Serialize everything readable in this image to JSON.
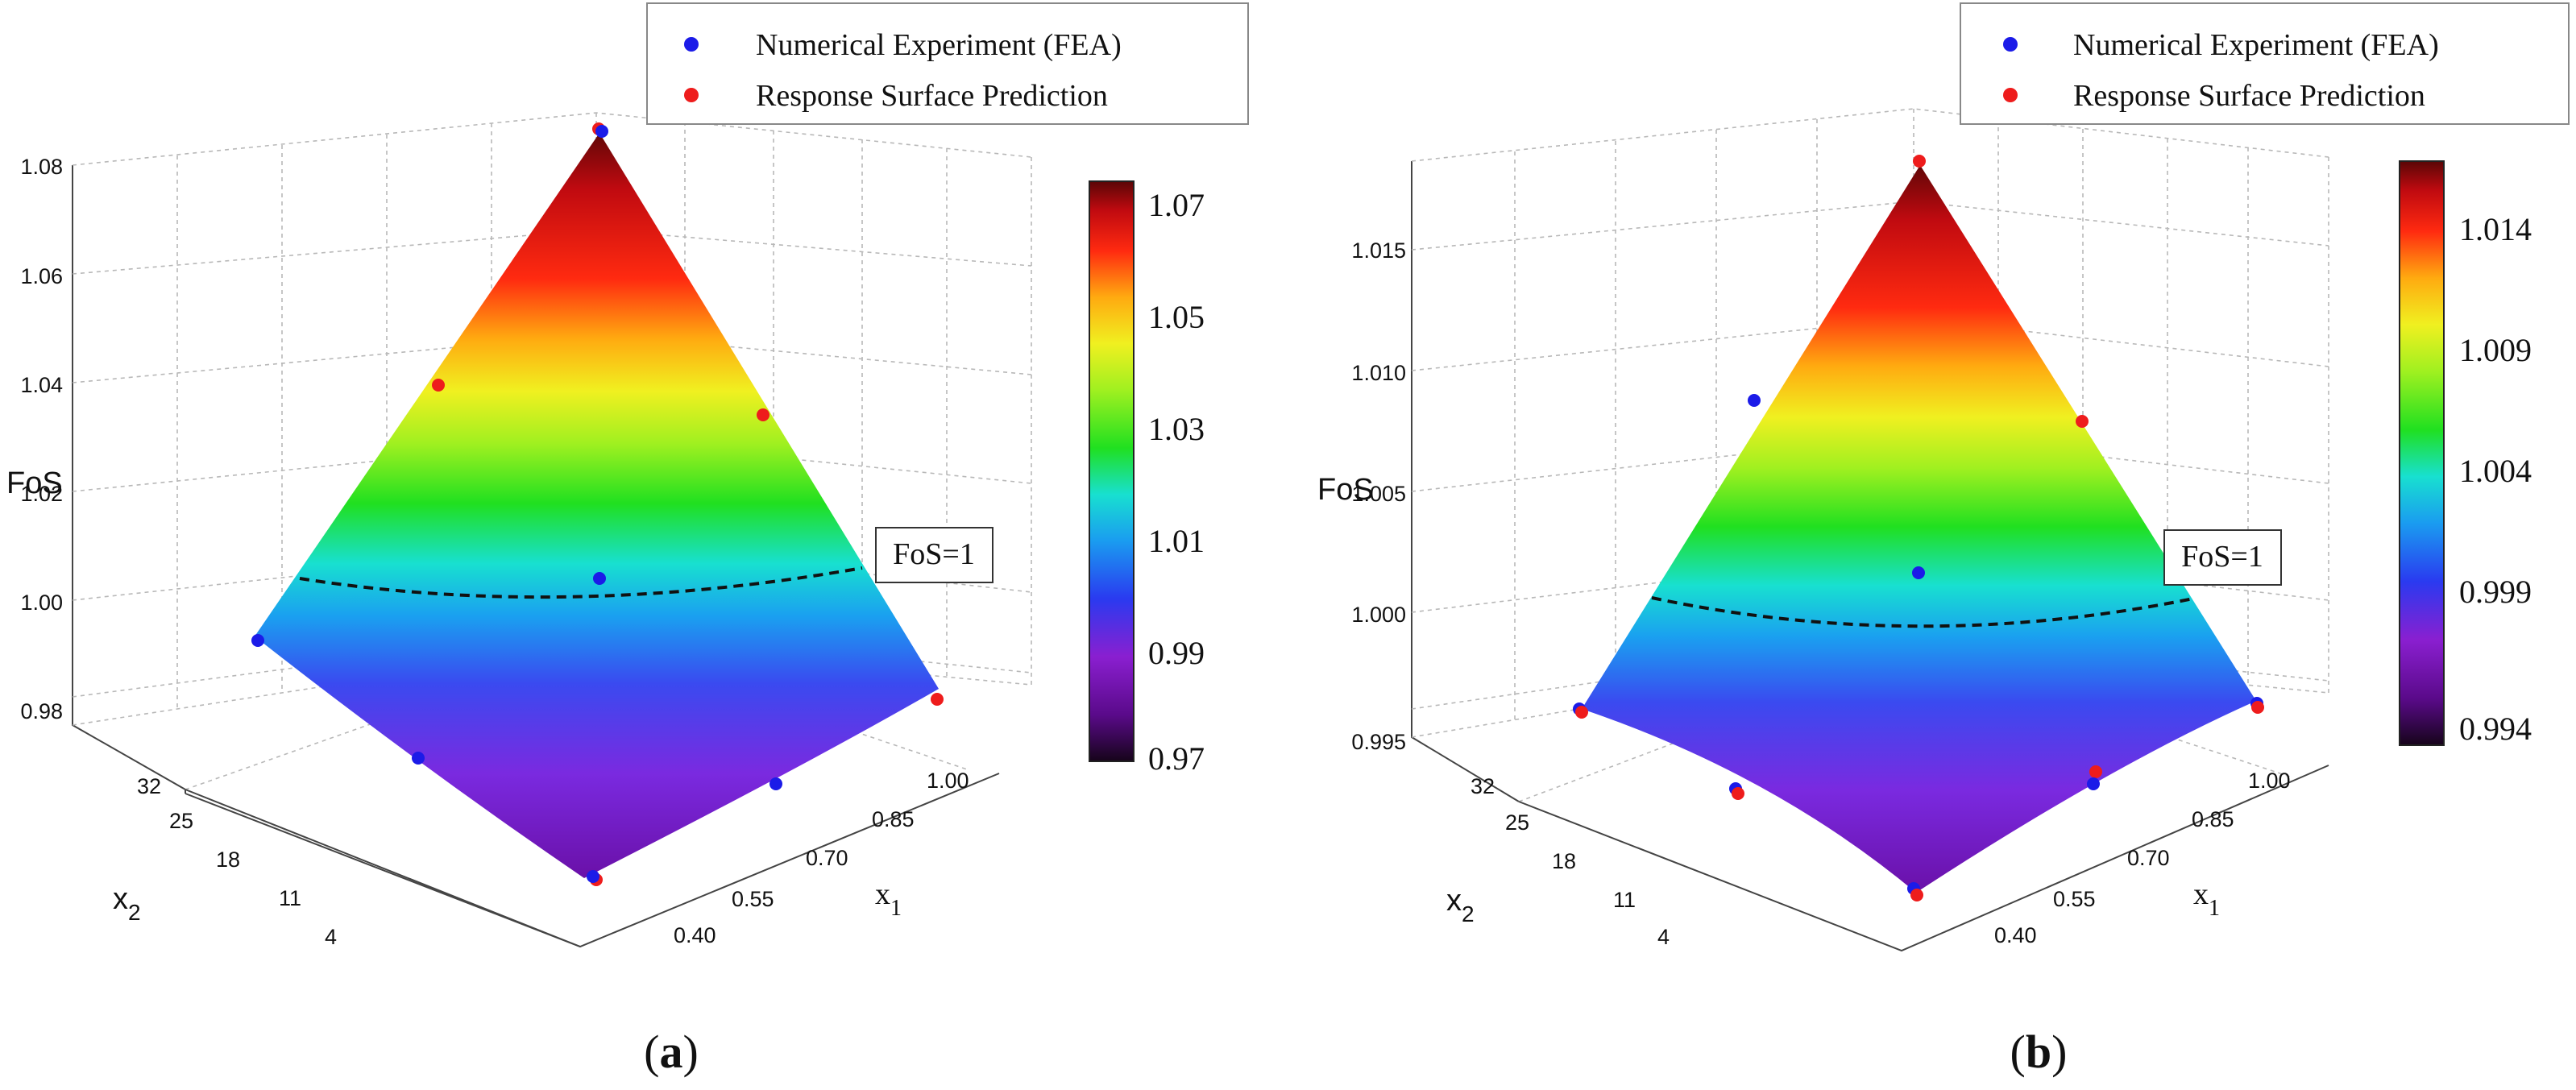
{
  "colors": {
    "fea": "#1b1be8",
    "rsp": "#ee1c1c",
    "contour": "#111111",
    "colormap": [
      "#16041a",
      "#5a0a8a",
      "#8a1fd0",
      "#2a3af0",
      "#1a9cf0",
      "#18e0d0",
      "#20e020",
      "#a0f020",
      "#f0f020",
      "#ffaa10",
      "#ff2a10",
      "#c00a10",
      "#5a0606"
    ]
  },
  "figures": [
    {
      "panel_label": "(a)",
      "zlabel": "FoS",
      "x1_label": "x",
      "x1_sub": "1",
      "x2_label": "x",
      "x2_sub": "2",
      "contour_label": "FoS=1",
      "legend": [
        "Numerical Experiment (FEA)",
        "Response Surface Prediction"
      ],
      "colorbar_ticks": [
        "1.07",
        "1.05",
        "1.03",
        "1.01",
        "0.99",
        "0.97"
      ]
    },
    {
      "panel_label": "(b)",
      "zlabel": "FoS",
      "x1_label": "x",
      "x1_sub": "1",
      "x2_label": "x",
      "x2_sub": "2",
      "contour_label": "FoS=1",
      "legend": [
        "Numerical Experiment (FEA)",
        "Response Surface Prediction"
      ],
      "colorbar_ticks": [
        "1.014",
        "1.009",
        "1.004",
        "0.999",
        "0.994"
      ]
    }
  ],
  "chart_data": [
    {
      "type": "surface3d",
      "title": "(a)",
      "zlabel": "FoS",
      "xlabel": "x1",
      "ylabel": "x2",
      "x1_ticks": [
        "0.40",
        "0.55",
        "0.70",
        "0.85",
        "1.00"
      ],
      "x2_ticks": [
        "32",
        "25",
        "18",
        "11",
        "4"
      ],
      "z_ticks": [
        "0.98",
        "1.00",
        "1.02",
        "1.04",
        "1.06",
        "1.08"
      ],
      "zlim": [
        0.97,
        1.08
      ],
      "colorbar_range": [
        0.97,
        1.07
      ],
      "contour_level": 1.0,
      "surface_corners": {
        "top": 1.072,
        "left": 0.993,
        "right": 0.986,
        "bottom": 0.968
      },
      "series": [
        {
          "name": "Numerical Experiment (FEA)",
          "points": [
            {
              "x1": 0.4,
              "x2": 32,
              "z": 1.073
            },
            {
              "x1": 0.4,
              "x2": 18,
              "z": 1.038
            },
            {
              "x1": 0.4,
              "x2": 4,
              "z": 0.994
            },
            {
              "x1": 0.7,
              "x2": 32,
              "z": 1.037
            },
            {
              "x1": 0.7,
              "x2": 18,
              "z": 1.002
            },
            {
              "x1": 0.7,
              "x2": 4,
              "z": 0.978
            },
            {
              "x1": 1.0,
              "x2": 32,
              "z": 0.987
            },
            {
              "x1": 1.0,
              "x2": 18,
              "z": 0.975
            },
            {
              "x1": 1.0,
              "x2": 4,
              "z": 0.968
            }
          ]
        },
        {
          "name": "Response Surface Prediction",
          "points": [
            {
              "x1": 0.4,
              "x2": 32,
              "z": 1.072
            },
            {
              "x1": 0.4,
              "x2": 18,
              "z": 1.04
            },
            {
              "x1": 0.4,
              "x2": 4,
              "z": 0.993
            },
            {
              "x1": 0.7,
              "x2": 32,
              "z": 1.039
            },
            {
              "x1": 0.7,
              "x2": 18,
              "z": 1.002
            },
            {
              "x1": 0.7,
              "x2": 4,
              "z": 0.977
            },
            {
              "x1": 1.0,
              "x2": 32,
              "z": 0.986
            },
            {
              "x1": 1.0,
              "x2": 18,
              "z": 0.976
            },
            {
              "x1": 1.0,
              "x2": 4,
              "z": 0.967
            }
          ]
        }
      ]
    },
    {
      "type": "surface3d",
      "title": "(b)",
      "zlabel": "FoS",
      "xlabel": "x1",
      "ylabel": "x2",
      "x1_ticks": [
        "0.40",
        "0.55",
        "0.70",
        "0.85",
        "1.00"
      ],
      "x2_ticks": [
        "32",
        "25",
        "18",
        "11",
        "4"
      ],
      "z_ticks": [
        "0.995",
        "1.000",
        "1.005",
        "1.010",
        "1.015"
      ],
      "zlim": [
        0.994,
        1.017
      ],
      "colorbar_range": [
        0.994,
        1.016
      ],
      "contour_level": 1.0,
      "surface_corners": {
        "top": 1.0157,
        "left": 0.9966,
        "right": 0.9968,
        "bottom": 0.9937
      },
      "series": [
        {
          "name": "Numerical Experiment (FEA)",
          "points": [
            {
              "x1": 0.4,
              "x2": 32,
              "z": 1.0158
            },
            {
              "x1": 0.4,
              "x2": 18,
              "z": 1.0072
            },
            {
              "x1": 0.4,
              "x2": 4,
              "z": 0.9966
            },
            {
              "x1": 0.7,
              "x2": 32,
              "z": 1.007
            },
            {
              "x1": 0.7,
              "x2": 18,
              "z": 1.0018
            },
            {
              "x1": 0.7,
              "x2": 4,
              "z": 0.996
            },
            {
              "x1": 1.0,
              "x2": 32,
              "z": 0.9968
            },
            {
              "x1": 1.0,
              "x2": 18,
              "z": 0.9962
            },
            {
              "x1": 1.0,
              "x2": 4,
              "z": 0.9938
            }
          ]
        },
        {
          "name": "Response Surface Prediction",
          "points": [
            {
              "x1": 0.4,
              "x2": 32,
              "z": 1.0157
            },
            {
              "x1": 0.4,
              "x2": 18,
              "z": 1.0071
            },
            {
              "x1": 0.4,
              "x2": 4,
              "z": 0.9965
            },
            {
              "x1": 0.7,
              "x2": 32,
              "z": 1.0071
            },
            {
              "x1": 0.7,
              "x2": 18,
              "z": 1.0018
            },
            {
              "x1": 0.7,
              "x2": 4,
              "z": 0.9962
            },
            {
              "x1": 1.0,
              "x2": 32,
              "z": 0.9967
            },
            {
              "x1": 1.0,
              "x2": 18,
              "z": 0.9962
            },
            {
              "x1": 1.0,
              "x2": 4,
              "z": 0.9936
            }
          ]
        }
      ]
    }
  ]
}
